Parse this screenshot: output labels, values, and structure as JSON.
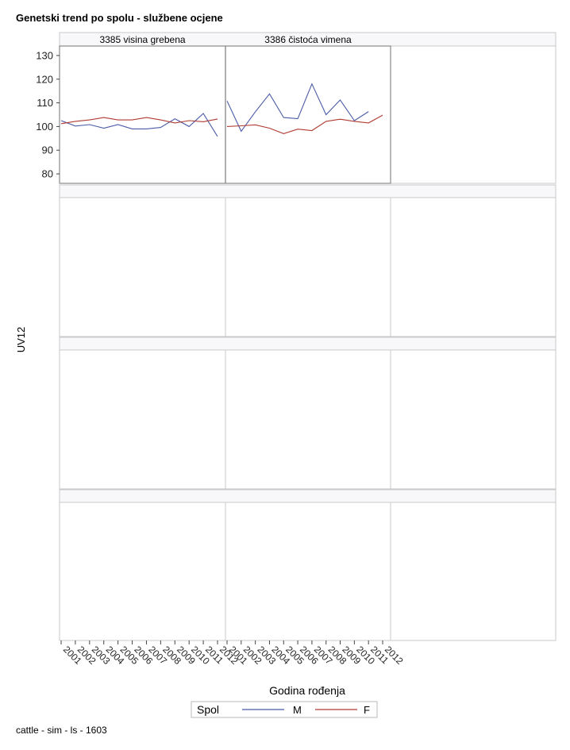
{
  "title": "Genetski trend po spolu - službene ocjene",
  "footer": "cattle - sim - ls - 1603",
  "chart_data": {
    "type": "line",
    "layout": "panel grid 3 columns x 4 rows, only first row has data",
    "xlabel": "Godina rođenja",
    "ylabel": "UV12",
    "x": [
      2001,
      2002,
      2003,
      2004,
      2005,
      2006,
      2007,
      2008,
      2009,
      2010,
      2011,
      2012
    ],
    "x_tick_labels": [
      "2001",
      "2002",
      "2003",
      "2004",
      "2005",
      "2006",
      "2007",
      "2008",
      "2009",
      "2010",
      "2011",
      "2012"
    ],
    "ylim": [
      76,
      134
    ],
    "y_ticks": [
      80,
      90,
      100,
      110,
      120,
      130
    ],
    "grid": true,
    "legend": {
      "title": "Spol",
      "position": "bottom"
    },
    "series_styles": [
      {
        "name": "M",
        "color": "#4a5ba6"
      },
      {
        "name": "F",
        "color": "#b03a32"
      }
    ],
    "panels": [
      {
        "label": "3385 visina grebena",
        "series": [
          {
            "name": "M",
            "values": [
              102.5,
              100.2,
              100.8,
              99.3,
              100.8,
              99.0,
              99.0,
              99.6,
              103.3,
              100.0,
              105.5,
              95.8
            ]
          },
          {
            "name": "F",
            "values": [
              101.2,
              102.2,
              102.8,
              103.8,
              102.8,
              102.8,
              103.8,
              102.8,
              101.5,
              102.5,
              102.0,
              103.2
            ]
          }
        ]
      },
      {
        "label": "3386 čistoća vimena",
        "series": [
          {
            "name": "M",
            "values": [
              110.8,
              98.0,
              106.2,
              113.8,
              103.8,
              103.3,
              118.0,
              105.0,
              111.2,
              102.5,
              106.3,
              null
            ]
          },
          {
            "name": "F",
            "values": [
              100.0,
              100.3,
              100.7,
              99.3,
              97.0,
              98.9,
              98.3,
              102.2,
              103.1,
              102.2,
              101.5,
              104.8
            ]
          }
        ]
      },
      {
        "label": "",
        "series": []
      },
      {
        "label": "",
        "series": []
      },
      {
        "label": "",
        "series": []
      },
      {
        "label": "",
        "series": []
      },
      {
        "label": "",
        "series": []
      },
      {
        "label": "",
        "series": []
      },
      {
        "label": "",
        "series": []
      },
      {
        "label": "",
        "series": []
      },
      {
        "label": "",
        "series": []
      },
      {
        "label": "",
        "series": []
      }
    ]
  }
}
